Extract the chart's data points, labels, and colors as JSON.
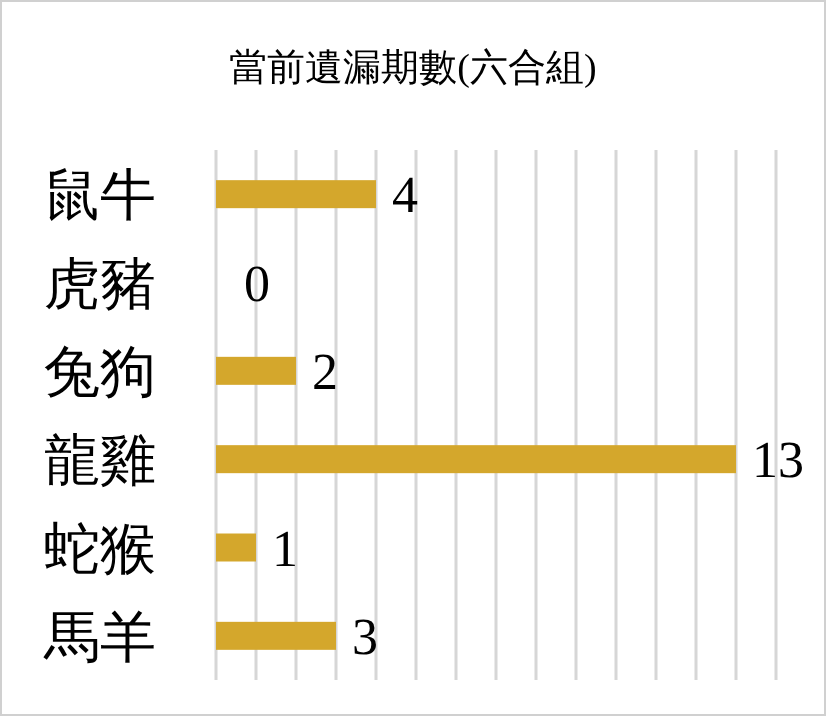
{
  "chart_data": {
    "type": "bar",
    "orientation": "horizontal",
    "title": "當前遺漏期數(六合組)",
    "categories": [
      "鼠牛",
      "虎豬",
      "兔狗",
      "龍雞",
      "蛇猴",
      "馬羊"
    ],
    "values": [
      4,
      0,
      2,
      13,
      1,
      3
    ],
    "color": "#d4a72c",
    "data_labels": true,
    "xlim": [
      0,
      14
    ],
    "xticks": [
      {
        "value": 0,
        "label": null
      },
      {
        "value": 1,
        "label": null
      },
      {
        "value": 2,
        "label": null
      },
      {
        "value": 3,
        "label": null
      },
      {
        "value": 4,
        "label": null
      },
      {
        "value": 5,
        "label": null
      },
      {
        "value": 6,
        "label": null
      },
      {
        "value": 7,
        "label": null
      },
      {
        "value": 8,
        "label": null
      },
      {
        "value": 9,
        "label": null
      },
      {
        "value": 10,
        "label": null
      },
      {
        "value": 11,
        "label": null
      },
      {
        "value": 12,
        "label": null
      },
      {
        "value": 13,
        "label": null
      },
      {
        "value": 14,
        "label": null
      }
    ],
    "grid": "x",
    "tick_labels": "y"
  }
}
